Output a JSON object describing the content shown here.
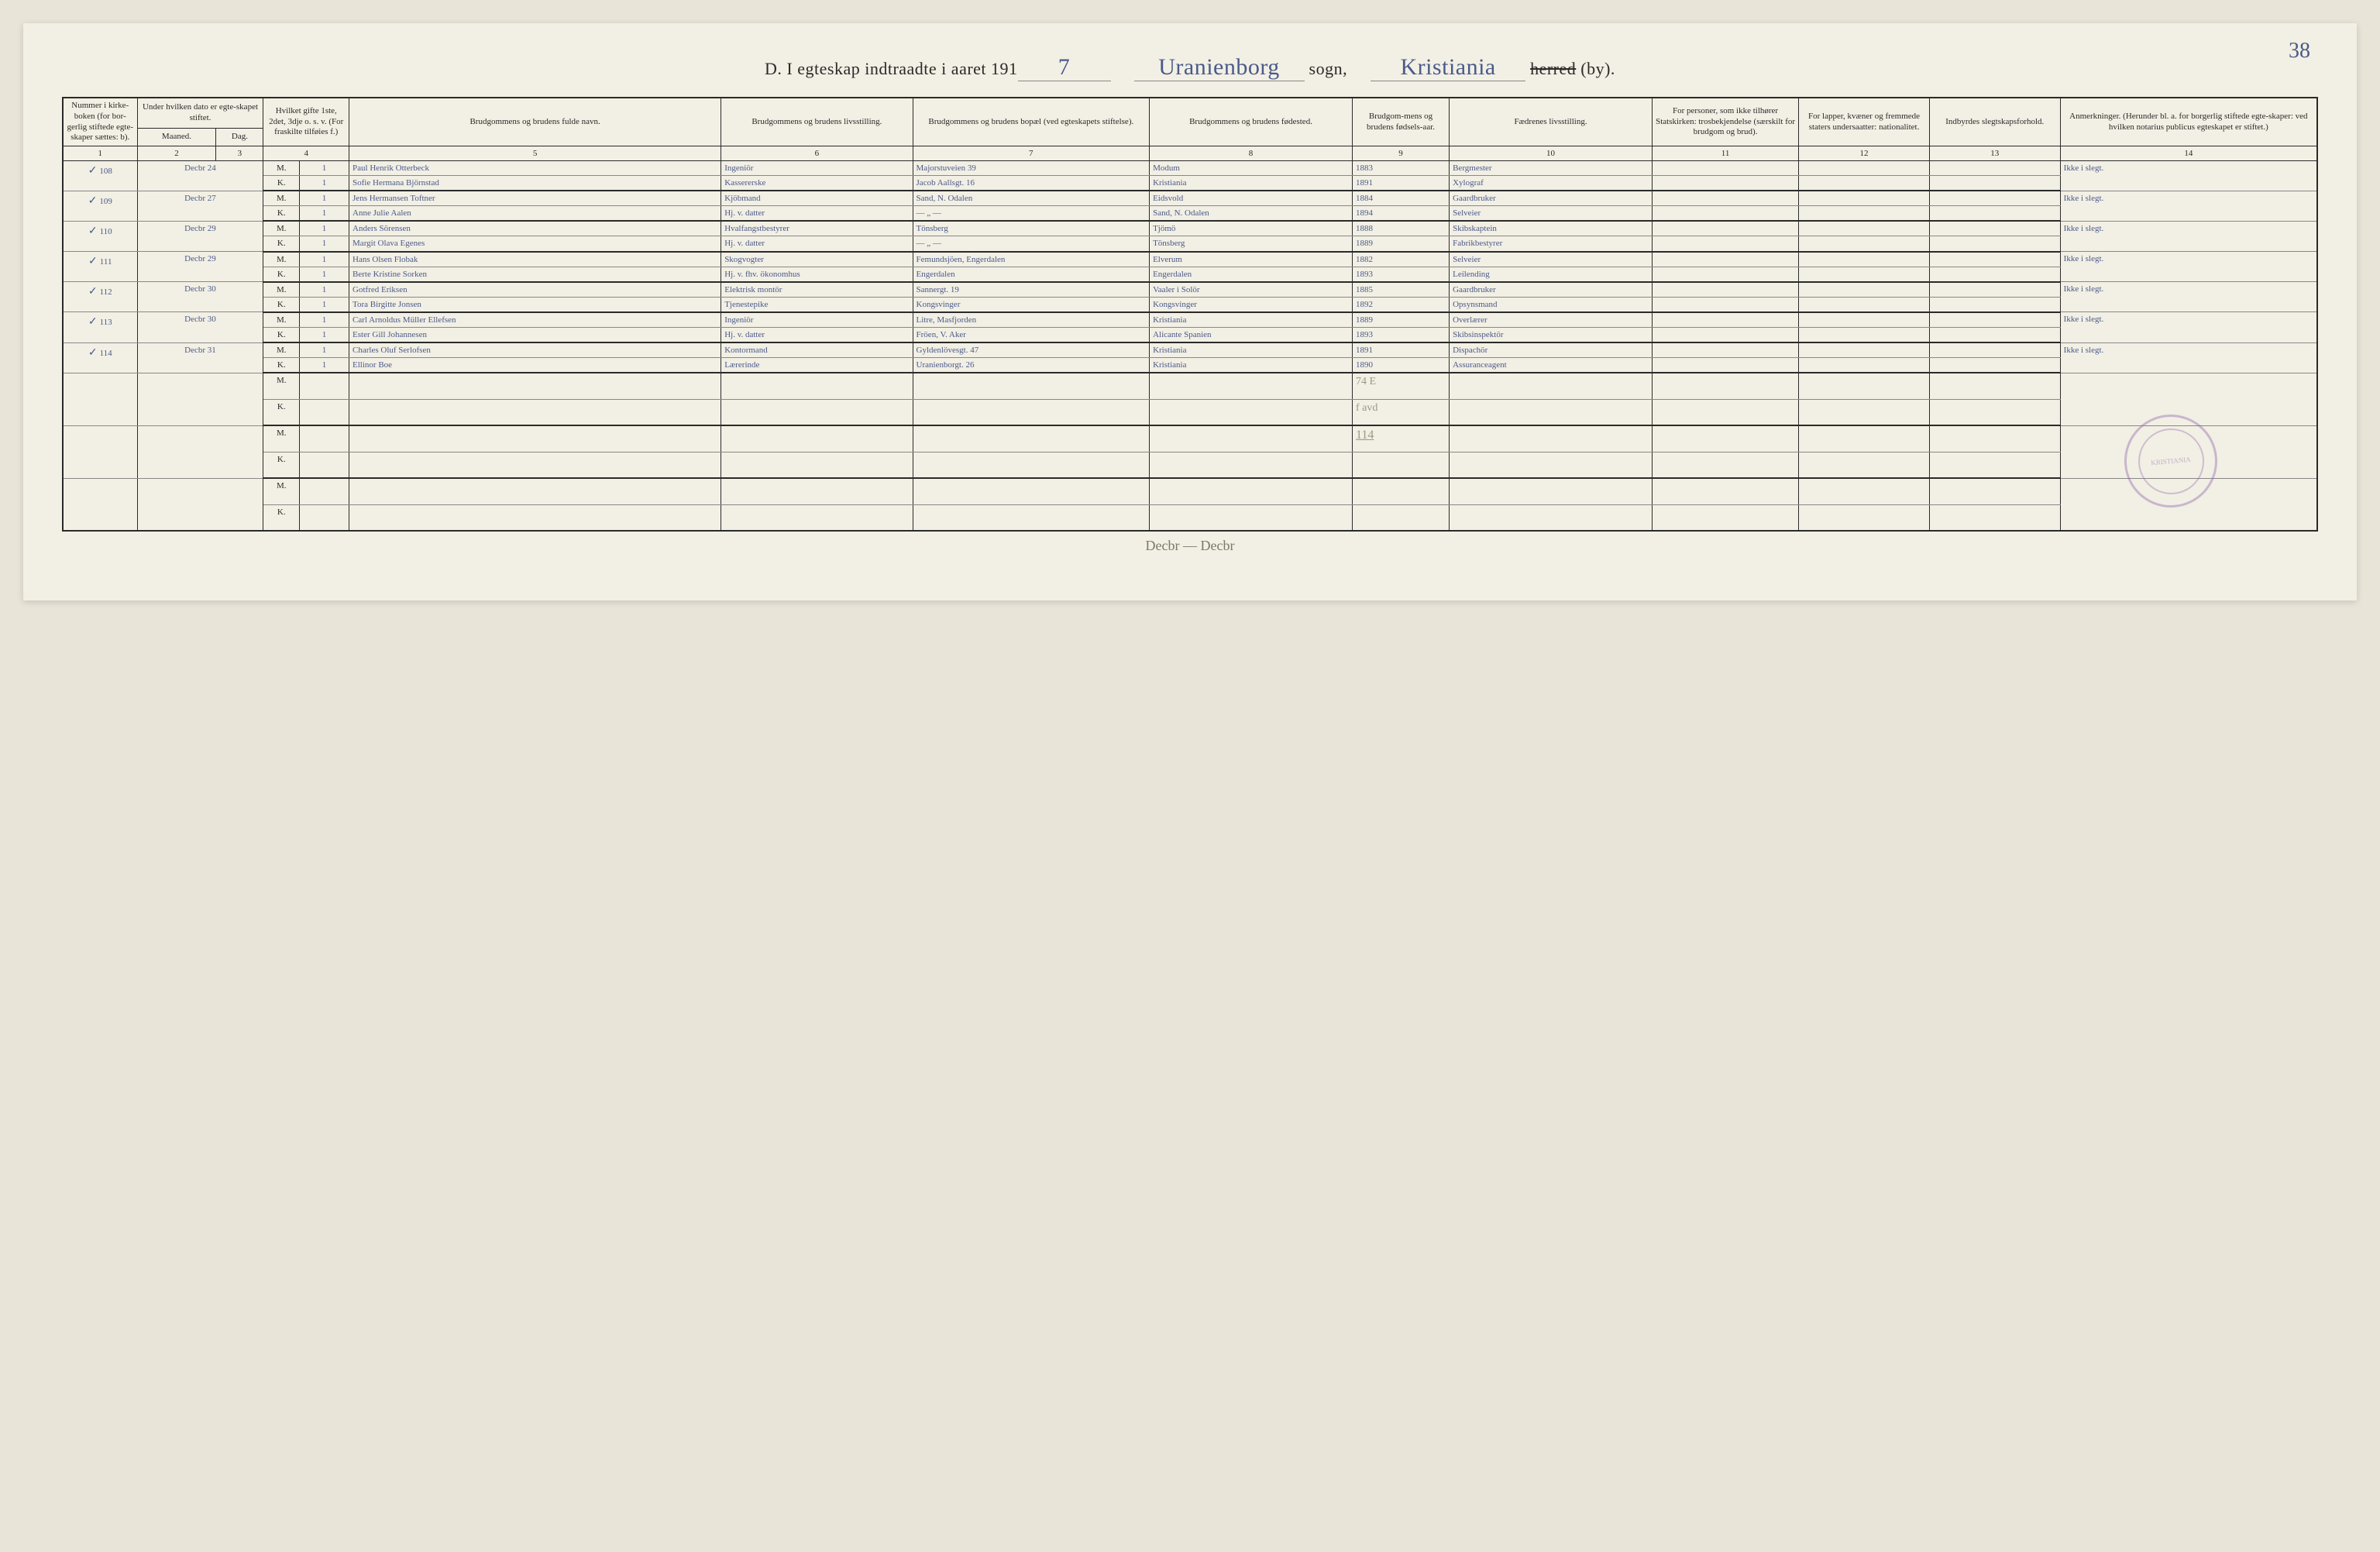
{
  "page_number": "38",
  "header": {
    "prefix": "D.  I egteskap indtraadte i aaret 191",
    "year_digit": "7",
    "sogn_value": "Uranienborg",
    "sogn_label": "sogn,",
    "herred_value": "Kristiania",
    "herred_strike": "herred",
    "herred_suffix": "(by)."
  },
  "columns": {
    "c1": "Nummer i kirke-boken (for bor-gerlig stiftede egte-skaper sættes: b).",
    "c2a": "Under hvilken dato er egte-skapet stiftet.",
    "c2_month": "Maaned.",
    "c2_day": "Dag.",
    "c3": "Hvilket gifte 1ste, 2det, 3dje o. s. v. (For fraskilte tilføies f.)",
    "c4": "Brudgommens og brudens fulde navn.",
    "c5": "Brudgommens og brudens livsstilling.",
    "c6": "Brudgommens og brudens bopæl (ved egteskapets stiftelse).",
    "c7": "Brudgommens og brudens fødested.",
    "c8": "Brudgom-mens og brudens fødsels-aar.",
    "c9": "Fædrenes livsstilling.",
    "c10": "For personer, som ikke tilhører Statskirken: trosbekjendelse (særskilt for brudgom og brud).",
    "c11": "For lapper, kvæner og fremmede staters undersaatter: nationalitet.",
    "c12": "Indbyrdes slegtskapsforhold.",
    "c13": "Anmerkninger. (Herunder bl. a. for borgerlig stiftede egte-skaper: ved hvilken notarius publicus egteskapet er stiftet.)"
  },
  "colnums": [
    "1",
    "2",
    "3",
    "4",
    "5",
    "6",
    "7",
    "8",
    "9",
    "10",
    "11",
    "12",
    "13",
    "14"
  ],
  "entries": [
    {
      "num": "108",
      "month": "Decbr",
      "day": "24",
      "m": {
        "mk": "M.",
        "gifte": "1",
        "navn": "Paul Henrik Otterbeck",
        "stilling": "Ingeniör",
        "bopael": "Majorstuveien 39",
        "fodested": "Modum",
        "aar": "1883",
        "faedre": "Bergmester"
      },
      "k": {
        "mk": "K.",
        "gifte": "1",
        "navn": "Sofie Hermana Björnstad",
        "stilling": "Kassererske",
        "bopael": "Jacob Aallsgt. 16",
        "fodested": "Kristiania",
        "aar": "1891",
        "faedre": "Xylograf"
      },
      "remark": "Ikke i slegt."
    },
    {
      "num": "109",
      "month": "Decbr",
      "day": "27",
      "m": {
        "mk": "M.",
        "gifte": "1",
        "navn": "Jens Hermansen Toftner",
        "stilling": "Kjöbmand",
        "bopael": "Sand, N. Odalen",
        "fodested": "Eidsvold",
        "aar": "1884",
        "faedre": "Gaardbruker"
      },
      "k": {
        "mk": "K.",
        "gifte": "1",
        "navn": "Anne Julie Aalen",
        "stilling": "Hj. v. datter",
        "bopael": "— „ —",
        "fodested": "Sand, N. Odalen",
        "aar": "1894",
        "faedre": "Selveier"
      },
      "remark": "Ikke i slegt."
    },
    {
      "num": "110",
      "month": "Decbr",
      "day": "29",
      "m": {
        "mk": "M.",
        "gifte": "1",
        "navn": "Anders Sörensen",
        "stilling": "Hvalfangstbestyrer",
        "bopael": "Tönsberg",
        "fodested": "Tjömö",
        "aar": "1888",
        "faedre": "Skibskaptein"
      },
      "k": {
        "mk": "K.",
        "gifte": "1",
        "navn": "Margit Olava Egenes",
        "stilling": "Hj. v. datter",
        "bopael": "— „ —",
        "fodested": "Tönsberg",
        "aar": "1889",
        "faedre": "Fabrikbestyrer"
      },
      "remark": "Ikke i slegt."
    },
    {
      "num": "111",
      "month": "Decbr",
      "day": "29",
      "m": {
        "mk": "M.",
        "gifte": "1",
        "navn": "Hans Olsen Flobak",
        "stilling": "Skogvogter",
        "bopael": "Femundsjöen, Engerdalen",
        "fodested": "Elverum",
        "aar": "1882",
        "faedre": "Selveier"
      },
      "k": {
        "mk": "K.",
        "gifte": "1",
        "navn": "Berte Kristine Sorken",
        "stilling": "Hj. v. fhv. ökonomhus",
        "bopael": "Engerdalen",
        "fodested": "Engerdalen",
        "aar": "1893",
        "faedre": "Leilending"
      },
      "remark": "Ikke i slegt."
    },
    {
      "num": "112",
      "month": "Decbr",
      "day": "30",
      "m": {
        "mk": "M.",
        "gifte": "1",
        "navn": "Gotfred Eriksen",
        "stilling": "Elektrisk montör",
        "bopael": "Sannergt. 19",
        "fodested": "Vaaler i Solör",
        "aar": "1885",
        "faedre": "Gaardbruker"
      },
      "k": {
        "mk": "K.",
        "gifte": "1",
        "navn": "Tora Birgitte Jonsen",
        "stilling": "Tjenestepike",
        "bopael": "Kongsvinger",
        "fodested": "Kongsvinger",
        "aar": "1892",
        "faedre": "Opsynsmand"
      },
      "remark": "Ikke i slegt."
    },
    {
      "num": "113",
      "month": "Decbr",
      "day": "30",
      "m": {
        "mk": "M.",
        "gifte": "1",
        "navn": "Carl Arnoldus Müller Ellefsen",
        "stilling": "Ingeniör",
        "bopael": "Litre, Masfjorden",
        "fodested": "Kristiania",
        "aar": "1889",
        "faedre": "Overlærer"
      },
      "k": {
        "mk": "K.",
        "gifte": "1",
        "navn": "Ester Gill Johannesen",
        "stilling": "Hj. v. datter",
        "bopael": "Fröen, V. Aker",
        "fodested": "Alicante Spanien",
        "aar": "1893",
        "faedre": "Skibsinspektör"
      },
      "remark": "Ikke i slegt."
    },
    {
      "num": "114",
      "month": "Decbr",
      "day": "31",
      "m": {
        "mk": "M.",
        "gifte": "1",
        "navn": "Charles Oluf Serlofsen",
        "stilling": "Kontormand",
        "bopael": "Gyldenlövesgt. 47",
        "fodested": "Kristiania",
        "aar": "1891",
        "faedre": "Dispachör"
      },
      "k": {
        "mk": "K.",
        "gifte": "1",
        "navn": "Ellinor Boe",
        "stilling": "Lærerinde",
        "bopael": "Uranienborgt. 26",
        "fodested": "Kristiania",
        "aar": "1890",
        "faedre": "Assuranceagent"
      },
      "remark": "Ikke i slegt."
    }
  ],
  "empty_rows": 3,
  "mk_labels": {
    "m": "M.",
    "k": "K."
  },
  "pencil_notes": {
    "count1": "74 E",
    "count2": "f avd",
    "total": "114"
  },
  "footer_note": "Decbr — Decbr",
  "stamp_text": "KRISTIANIA",
  "colors": {
    "ink": "#4a5a8a",
    "print": "#2a2a2a",
    "paper": "#f2efe4",
    "pencil": "#9a9a86",
    "stamp": "rgba(138,100,170,0.4)",
    "red": "#c0392b"
  },
  "col_widths_pct": [
    3.5,
    3.5,
    2.2,
    3.2,
    17,
    9,
    10.5,
    9,
    4.5,
    9,
    7,
    6,
    6,
    9.6
  ]
}
